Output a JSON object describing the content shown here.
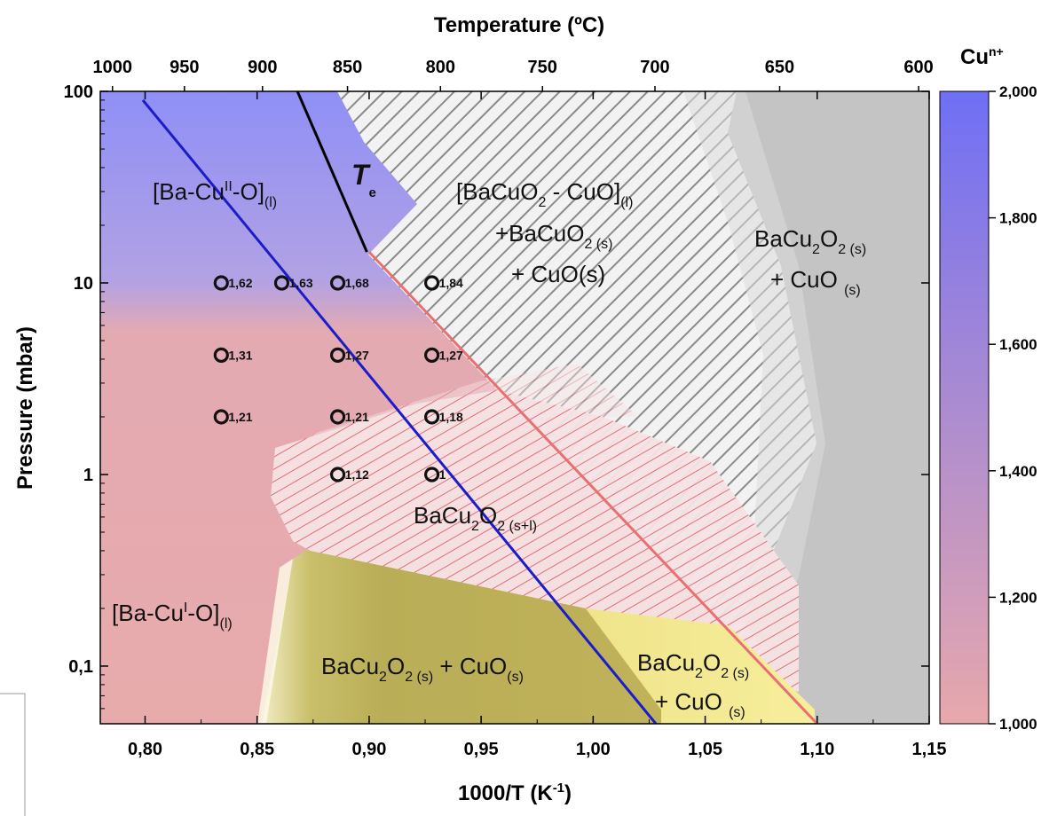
{
  "chart_data": {
    "type": "scatter",
    "title": "",
    "xlabel": "1000/T (K",
    "xlabel_sup": "-1",
    "xlabel_end": ")",
    "ylabel": "Pressure (mbar)",
    "top_axis_label": "Temperature (ºC)",
    "xlim": [
      0.78,
      1.15
    ],
    "ylim": [
      0.05,
      100
    ],
    "yscale": "log",
    "x_ticks": [
      "0,80",
      "0,85",
      "0,90",
      "0,95",
      "1,00",
      "1,05",
      "1,10",
      "1,15"
    ],
    "x_tick_values": [
      0.8,
      0.85,
      0.9,
      0.95,
      1.0,
      1.05,
      1.1,
      1.15
    ],
    "y_ticks": [
      "0,1",
      "1",
      "10",
      "100"
    ],
    "y_tick_values": [
      0.1,
      1,
      10,
      100
    ],
    "top_ticks": [
      "1000",
      "950",
      "900",
      "850",
      "800",
      "750",
      "700",
      "650",
      "600"
    ],
    "top_tick_values": [
      1000,
      950,
      900,
      850,
      800,
      750,
      700,
      650,
      600
    ],
    "colorbar": {
      "title": "Cu",
      "title_sup": "n+",
      "range": [
        1.0,
        2.0
      ],
      "ticks": [
        "2,000",
        "1,800",
        "1,600",
        "1,400",
        "1,200",
        "1,000"
      ],
      "tick_values": [
        2.0,
        1.8,
        1.6,
        1.4,
        1.2,
        1.0
      ],
      "colors": [
        "#6f6ff5",
        "#e8a8ac"
      ]
    },
    "series": [
      {
        "points": [
          {
            "x": 0.834,
            "y": 10,
            "label": "1,62"
          },
          {
            "x": 0.861,
            "y": 10,
            "label": "1,63"
          },
          {
            "x": 0.886,
            "y": 10,
            "label": "1,68"
          },
          {
            "x": 0.928,
            "y": 10,
            "label": "1,84"
          },
          {
            "x": 0.834,
            "y": 4.2,
            "label": "1,31"
          },
          {
            "x": 0.886,
            "y": 4.2,
            "label": "1,27"
          },
          {
            "x": 0.928,
            "y": 4.2,
            "label": "1,27"
          },
          {
            "x": 0.834,
            "y": 2.0,
            "label": "1,21"
          },
          {
            "x": 0.886,
            "y": 2.0,
            "label": "1,21"
          },
          {
            "x": 0.928,
            "y": 2.0,
            "label": "1,18"
          },
          {
            "x": 0.886,
            "y": 1.0,
            "label": "1,12"
          },
          {
            "x": 0.928,
            "y": 1.0,
            "label": "1"
          }
        ]
      }
    ],
    "lines": [
      {
        "color": "#1c1cc8",
        "points": [
          [
            0.799,
            90
          ],
          [
            1.028,
            0.05
          ]
        ]
      },
      {
        "color": "#000000",
        "points": [
          [
            0.868,
            100
          ],
          [
            0.899,
            14.5
          ]
        ]
      },
      {
        "color": "#e87070",
        "points": [
          [
            0.9,
            14.5
          ],
          [
            1.1,
            0.05
          ]
        ]
      }
    ],
    "labels": {
      "te": "T",
      "te_sub": "e",
      "cu2_liquid": [
        "[Ba-Cu",
        "II",
        "-O]",
        "(l)"
      ],
      "cu1_liquid": [
        "[Ba-Cu",
        "I",
        "-O]",
        "(l)"
      ],
      "mixed_liquid_l1": [
        "[BaCuO",
        "2",
        " - CuO]",
        "(l)"
      ],
      "mixed_liquid_l2": [
        "+BaCuO",
        "2 (s)"
      ],
      "mixed_liquid_l3": [
        "+ CuO(s)"
      ],
      "bacu2o2_cuo_right_l1": [
        "BaCu",
        "2",
        "O",
        "2 (s)"
      ],
      "bacu2o2_cuo_right_l2": [
        "+ CuO ",
        "(s)"
      ],
      "bacu2o2_sl": [
        "BaCu",
        "2",
        "O",
        "2 (s+l)"
      ],
      "bacu2o2_cuo_low": [
        "BaCu",
        "2",
        "O",
        "2 (s)",
        " + CuO",
        "(s)"
      ],
      "bacu2o2_cuo_yellow_l1": [
        "BaCu",
        "2",
        "O",
        "2 (s)"
      ],
      "bacu2o2_cuo_yellow_l2": [
        "+ CuO ",
        "(s)"
      ]
    }
  }
}
